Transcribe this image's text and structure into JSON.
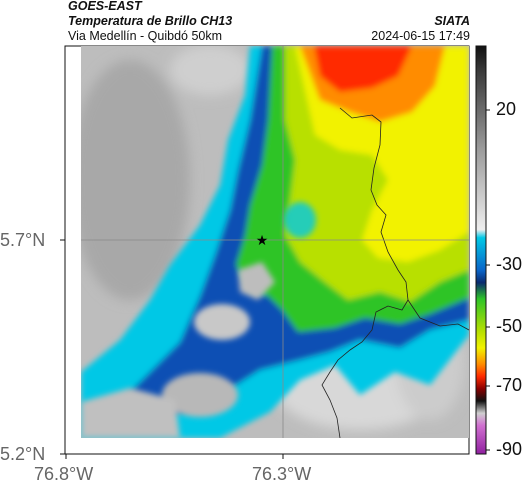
{
  "header": {
    "satellite": "GOES-EAST",
    "product": "Temperatura de Brillo CH13",
    "location": "Via Medellín - Quibdó 50km",
    "source": "SIATA",
    "datetime": "2024-06-15 17:49"
  },
  "axes": {
    "x_ticks": [
      {
        "label": "76.8°W",
        "lon": -76.8
      },
      {
        "label": "76.3°W",
        "lon": -76.3
      }
    ],
    "y_ticks": [
      {
        "label": "5.7°N",
        "lat": 5.7
      },
      {
        "label": "5.2°N",
        "lat": 5.2
      }
    ]
  },
  "colorbar": {
    "ticks": [
      {
        "label": "20",
        "value": 20
      },
      {
        "label": "-30",
        "value": -30
      },
      {
        "label": "-50",
        "value": -50
      },
      {
        "label": "-70",
        "value": -70
      },
      {
        "label": "-90",
        "value": -90
      }
    ]
  },
  "marker": {
    "symbol": "★"
  },
  "colors": {
    "warm_gray": "#bdbdbd",
    "cyan": "#00c8e6",
    "blue": "#0050b4",
    "green": "#2ec428",
    "yellow": "#f2f200",
    "orange": "#ff8c00",
    "red": "#ff2a00"
  }
}
